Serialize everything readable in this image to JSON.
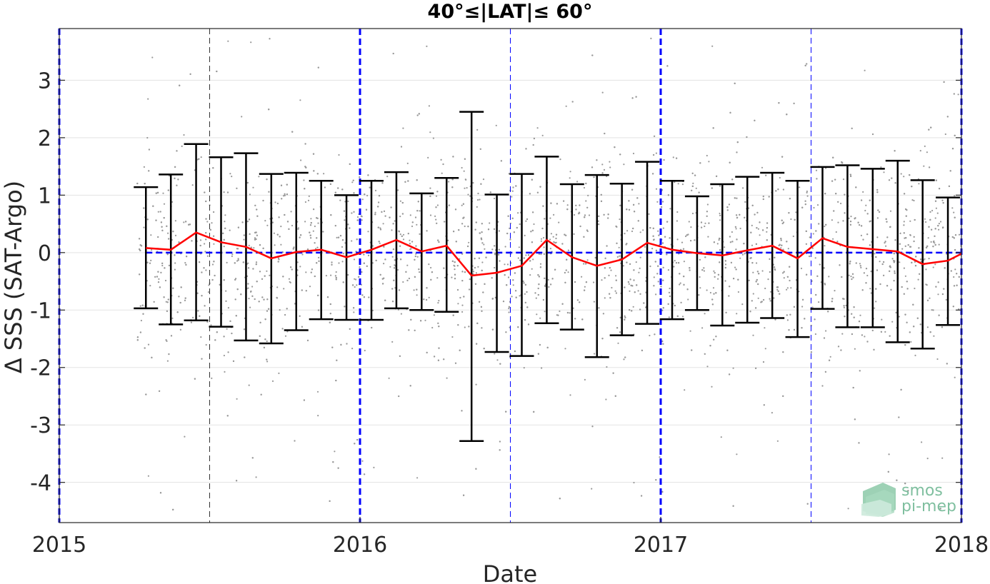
{
  "chart_data": {
    "type": "scatter",
    "title": "40°≤|LAT|≤ 60°",
    "xlabel": "Date",
    "ylabel": "Δ SSS (SAT-Argo)",
    "xlim": [
      2015.0,
      2018.0
    ],
    "ylim": [
      -4.7,
      3.9
    ],
    "x_ticks": [
      2015,
      2016,
      2017,
      2018
    ],
    "x_tick_labels": [
      "2015",
      "2016",
      "2017",
      "2018"
    ],
    "y_ticks": [
      -4,
      -3,
      -2,
      -1,
      0,
      1,
      2,
      3
    ],
    "y_tick_labels": [
      "-4",
      "-3",
      "-2",
      "-1",
      "0",
      "1",
      "2",
      "3"
    ],
    "grid": true,
    "colors": {
      "mean_line": "#ff0000",
      "error_bars": "#000000",
      "points": "#999999",
      "reference_lines": "#0000ff"
    },
    "year_boundaries": [
      2015.0,
      2016.0,
      2017.0,
      2018.0
    ],
    "half_year_lines": [
      2015.5,
      2016.5,
      2017.5
    ],
    "zero_line": 0,
    "series": [
      {
        "type": "errorbar",
        "x": [
          2015.288,
          2015.371,
          2015.455,
          2015.538,
          2015.621,
          2015.705,
          2015.788,
          2015.871,
          2015.955,
          2016.038,
          2016.121,
          2016.205,
          2016.288,
          2016.371,
          2016.455,
          2016.538,
          2016.621,
          2016.705,
          2016.788,
          2016.871,
          2016.955,
          2017.038,
          2017.121,
          2017.205,
          2017.288,
          2017.371,
          2017.455,
          2017.538,
          2017.621,
          2017.705,
          2017.788,
          2017.871,
          2017.955,
          2018.0
        ],
        "mean": [
          0.08,
          0.05,
          0.35,
          0.18,
          0.1,
          -0.1,
          0.01,
          0.05,
          -0.08,
          0.05,
          0.22,
          0.02,
          0.12,
          -0.4,
          -0.35,
          -0.23,
          0.22,
          -0.08,
          -0.23,
          -0.12,
          0.17,
          0.05,
          -0.01,
          -0.05,
          0.04,
          0.12,
          -0.1,
          0.25,
          0.1,
          0.06,
          0.02,
          -0.2,
          -0.14,
          -0.02
        ],
        "upper": [
          1.14,
          1.36,
          1.89,
          1.66,
          1.73,
          1.37,
          1.39,
          1.25,
          1.0,
          1.25,
          1.4,
          1.03,
          1.3,
          2.45,
          1.01,
          1.37,
          1.67,
          1.19,
          1.35,
          1.2,
          1.58,
          1.25,
          0.98,
          1.19,
          1.32,
          1.39,
          1.25,
          1.49,
          1.52,
          1.46,
          1.6,
          1.26,
          0.96,
          null
        ],
        "lower": [
          -0.97,
          -1.25,
          -1.18,
          -1.29,
          -1.53,
          -1.58,
          -1.35,
          -1.16,
          -1.17,
          -1.17,
          -0.97,
          -1.0,
          -1.03,
          -3.28,
          -1.73,
          -1.8,
          -1.23,
          -1.34,
          -1.82,
          -1.44,
          -1.24,
          -1.16,
          -1.0,
          -1.27,
          -1.22,
          -1.14,
          -1.47,
          -0.98,
          -1.3,
          -1.3,
          -1.56,
          -1.67,
          -1.26,
          null
        ]
      }
    ]
  },
  "watermark": {
    "line1": "smos",
    "line2": "pi-mep"
  }
}
